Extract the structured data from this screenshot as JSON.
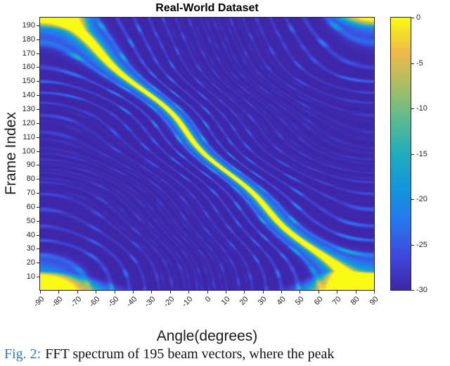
{
  "figure": {
    "title": "Real-World Dataset",
    "caption": {
      "label": "Fig. 2:",
      "text": "FFT spectrum of 195 beam vectors, where the peak",
      "label_color": "#2e7bb8"
    }
  },
  "axes": {
    "xlabel": "Angle(degrees)",
    "ylabel": "Frame Index",
    "xlim": [
      -90,
      90
    ],
    "ylim": [
      0.5,
      195.5
    ],
    "xticks": [
      -90,
      -80,
      -70,
      -60,
      -50,
      -40,
      -30,
      -20,
      -10,
      0,
      10,
      20,
      30,
      40,
      50,
      60,
      70,
      80,
      90
    ],
    "yticks": [
      10,
      20,
      30,
      40,
      50,
      60,
      70,
      80,
      90,
      100,
      110,
      120,
      130,
      140,
      150,
      160,
      170,
      180,
      190
    ]
  },
  "colorbar": {
    "max": 0,
    "min": -30,
    "ticks": [
      0,
      -5,
      -10,
      -15,
      -20,
      -25,
      -30
    ]
  },
  "chart_data": {
    "type": "heatmap",
    "title": "Real-World Dataset",
    "xlabel": "Angle(degrees)",
    "ylabel": "Frame Index",
    "x_range": [
      -90,
      90
    ],
    "y_range": [
      1,
      195
    ],
    "value_range_db": [
      -30,
      0
    ],
    "background_db": -30,
    "colormap": "parula",
    "colormap_stops": [
      [
        0,
        62,
        38,
        168
      ],
      [
        0.125,
        64,
        73,
        221
      ],
      [
        0.25,
        39,
        119,
        238
      ],
      [
        0.375,
        19,
        151,
        221
      ],
      [
        0.5,
        32,
        173,
        190
      ],
      [
        0.625,
        91,
        188,
        146
      ],
      [
        0.75,
        170,
        191,
        102
      ],
      [
        0.875,
        240,
        186,
        72
      ],
      [
        1,
        249,
        251,
        21
      ]
    ],
    "description": "Bright 0 dB ridge runs diagonally from (angle -78, frame 195) at top-left to (angle +80, frame 1) at bottom-right over a -30 dB dark-blue background, flanked by a thin cyan halo and faint curved cyan sidelobe arcs near the corners; the ridge widens into a yellow blob at the bottom-right corner.",
    "ridge": {
      "peak_db": 0,
      "angle_at_frame1": 80,
      "slope_deg_per_frame": -0.8124,
      "points": [
        {
          "frame": 195,
          "angle": -78
        },
        {
          "frame": 180,
          "angle": -65
        },
        {
          "frame": 160,
          "angle": -49
        },
        {
          "frame": 140,
          "angle": -33
        },
        {
          "frame": 120,
          "angle": -17
        },
        {
          "frame": 100,
          "angle": 0
        },
        {
          "frame": 80,
          "angle": 16
        },
        {
          "frame": 60,
          "angle": 32
        },
        {
          "frame": 40,
          "angle": 48
        },
        {
          "frame": 20,
          "angle": 65
        },
        {
          "frame": 1,
          "angle": 80
        }
      ]
    },
    "sidelobes": {
      "spacing_u": 0.115,
      "level_db_range": [
        -25,
        -14
      ],
      "alias_offsets_u": [
        2,
        -2
      ]
    }
  }
}
